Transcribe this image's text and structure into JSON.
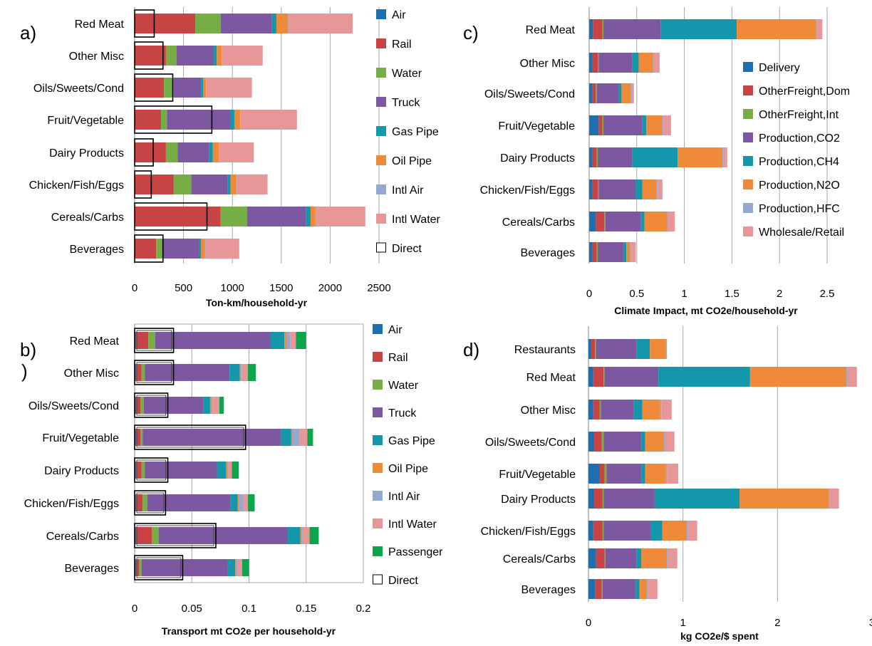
{
  "chart_data": [
    {
      "type": "bar",
      "orientation": "horizontal",
      "stacked": true,
      "panel_label": "a)",
      "xlabel": "Ton-km/household-yr",
      "xlim": [
        0,
        2500
      ],
      "xticks": [
        0,
        500,
        1000,
        1500,
        2000,
        2500
      ],
      "grid": "vertical",
      "legend_position": "right",
      "categories": [
        "Red Meat",
        "Other Misc",
        "Oils/Sweets/Cond",
        "Fruit/Vegetable",
        "Dairy Products",
        "Chicken/Fish/Eggs",
        "Cereals/Carbs",
        "Beverages"
      ],
      "series": [
        {
          "name": "Air",
          "color": "#1f6fae",
          "values": [
            0,
            0,
            0,
            0,
            0,
            0,
            0,
            0
          ]
        },
        {
          "name": "Rail",
          "color": "#c84444",
          "values": [
            620,
            320,
            300,
            270,
            320,
            400,
            880,
            220
          ]
        },
        {
          "name": "Water",
          "color": "#76ad45",
          "values": [
            260,
            110,
            100,
            60,
            120,
            180,
            270,
            60
          ]
        },
        {
          "name": "Truck",
          "color": "#7c58a0",
          "values": [
            520,
            380,
            280,
            650,
            320,
            370,
            600,
            380
          ]
        },
        {
          "name": "Gas Pipe",
          "color": "#1597ab",
          "values": [
            50,
            30,
            20,
            40,
            40,
            30,
            50,
            20
          ]
        },
        {
          "name": "Oil Pipe",
          "color": "#ef8a38",
          "values": [
            120,
            50,
            30,
            60,
            60,
            60,
            50,
            40
          ]
        },
        {
          "name": "Intl Air",
          "color": "#93a9d4",
          "values": [
            5,
            5,
            5,
            5,
            5,
            5,
            5,
            5
          ]
        },
        {
          "name": "Intl Water",
          "color": "#e79797",
          "values": [
            655,
            415,
            465,
            575,
            355,
            315,
            505,
            345
          ]
        }
      ],
      "direct": {
        "name": "Direct",
        "values": [
          200,
          290,
          390,
          790,
          190,
          170,
          740,
          290
        ]
      }
    },
    {
      "type": "bar",
      "orientation": "horizontal",
      "stacked": true,
      "panel_label": "b)\n)",
      "xlabel": "Transport mt CO2e per household-yr",
      "xlim": [
        0,
        0.2
      ],
      "xticks": [
        0,
        0.05,
        0.1,
        0.15,
        0.2
      ],
      "tick_labels": [
        "0",
        "0.05",
        "0.1",
        "0.15",
        "0.2"
      ],
      "grid": "vertical",
      "legend_position": "right",
      "categories": [
        "Red Meat",
        "Other Misc",
        "Oils/Sweets/Cond",
        "Fruit/Vegetable",
        "Dairy Products",
        "Chicken/Fish/Eggs",
        "Cereals/Carbs",
        "Beverages"
      ],
      "series": [
        {
          "name": "Air",
          "color": "#1f6fae",
          "values": [
            0.001,
            0.001,
            0.001,
            0.001,
            0.001,
            0.001,
            0.001,
            0.001
          ]
        },
        {
          "name": "Rail",
          "color": "#c84444",
          "values": [
            0.011,
            0.005,
            0.004,
            0.004,
            0.005,
            0.006,
            0.014,
            0.003
          ]
        },
        {
          "name": "Water",
          "color": "#76ad45",
          "values": [
            0.006,
            0.003,
            0.003,
            0.002,
            0.003,
            0.004,
            0.006,
            0.002
          ]
        },
        {
          "name": "Truck",
          "color": "#7c58a0",
          "values": [
            0.101,
            0.074,
            0.052,
            0.121,
            0.063,
            0.073,
            0.113,
            0.075
          ]
        },
        {
          "name": "Gas Pipe",
          "color": "#1597ab",
          "values": [
            0.012,
            0.009,
            0.006,
            0.009,
            0.008,
            0.006,
            0.011,
            0.007
          ]
        },
        {
          "name": "Oil Pipe",
          "color": "#ef8a38",
          "values": [
            0.002,
            0.001,
            0.001,
            0.001,
            0.001,
            0.001,
            0.001,
            0.001
          ]
        },
        {
          "name": "Intl Air",
          "color": "#93a9d4",
          "values": [
            0.003,
            0.001,
            0.001,
            0.006,
            0.001,
            0.004,
            0.001,
            0.001
          ]
        },
        {
          "name": "Intl Water",
          "color": "#e79797",
          "values": [
            0.005,
            0.005,
            0.006,
            0.007,
            0.003,
            0.004,
            0.006,
            0.004
          ]
        },
        {
          "name": "Passenger",
          "color": "#0fa34b",
          "values": [
            0.009,
            0.007,
            0.004,
            0.005,
            0.006,
            0.006,
            0.008,
            0.006
          ]
        }
      ],
      "direct": {
        "name": "Direct",
        "values": [
          0.034,
          0.034,
          0.029,
          0.097,
          0.029,
          0.027,
          0.071,
          0.042
        ]
      }
    },
    {
      "type": "bar",
      "orientation": "horizontal",
      "stacked": true,
      "panel_label": "c)",
      "xlabel": "Climate Impact, mt CO2e/household-yr",
      "xlim": [
        0,
        2.5
      ],
      "xticks": [
        0,
        0.5,
        1,
        1.5,
        2,
        2.5
      ],
      "tick_labels": [
        "0",
        "0.5",
        "1",
        "1.5",
        "2",
        "2.5"
      ],
      "grid": "vertical",
      "legend_position": "inside-right",
      "categories": [
        "Red Meat",
        "Other Misc",
        "Oils/Sweets/Cond",
        "Fruit/Vegetable",
        "Dairy Products",
        "Chicken/Fish/Eggs",
        "Cereals/Carbs",
        "Beverages"
      ],
      "series": [
        {
          "name": "Delivery",
          "color": "#1f6fae",
          "values": [
            0.04,
            0.03,
            0.03,
            0.1,
            0.03,
            0.03,
            0.07,
            0.03
          ]
        },
        {
          "name": "OtherFreight,Dom",
          "color": "#c84444",
          "values": [
            0.1,
            0.06,
            0.04,
            0.04,
            0.05,
            0.06,
            0.09,
            0.05
          ]
        },
        {
          "name": "OtherFreight,Int",
          "color": "#76ad45",
          "values": [
            0.01,
            0.01,
            0.01,
            0.01,
            0.01,
            0.01,
            0.01,
            0.01
          ]
        },
        {
          "name": "Production,CO2",
          "color": "#7c58a0",
          "values": [
            0.6,
            0.35,
            0.23,
            0.41,
            0.36,
            0.39,
            0.37,
            0.27
          ]
        },
        {
          "name": "Production,CH4",
          "color": "#1597ab",
          "values": [
            0.8,
            0.07,
            0.03,
            0.04,
            0.48,
            0.07,
            0.04,
            0.03
          ]
        },
        {
          "name": "Production,N2O",
          "color": "#ef8a38",
          "values": [
            0.83,
            0.15,
            0.1,
            0.17,
            0.47,
            0.15,
            0.24,
            0.04
          ]
        },
        {
          "name": "Production,HFC",
          "color": "#93a9d4",
          "values": [
            0.01,
            0.01,
            0.01,
            0.01,
            0.01,
            0.01,
            0.01,
            0.01
          ]
        },
        {
          "name": "Wholesale/Retail",
          "color": "#e79797",
          "values": [
            0.06,
            0.06,
            0.02,
            0.08,
            0.04,
            0.05,
            0.07,
            0.05
          ]
        }
      ]
    },
    {
      "type": "bar",
      "orientation": "horizontal",
      "stacked": true,
      "panel_label": "d)",
      "xlabel": "kg CO2e/$ spent",
      "xlim": [
        0,
        3
      ],
      "xticks": [
        0,
        1,
        2,
        3
      ],
      "tick_labels": [
        "0",
        "1",
        "2",
        "3"
      ],
      "grid": "vertical",
      "categories": [
        "Restaurants",
        "Red Meat",
        "Other Misc",
        "Oils/Sweets/Cond",
        "Fruit/Vegetable",
        "Dairy Products",
        "Chicken/Fish/Eggs",
        "Cereals/Carbs",
        "Beverages"
      ],
      "series": [
        {
          "name": "Delivery",
          "color": "#1f6fae",
          "values": [
            0.03,
            0.05,
            0.05,
            0.06,
            0.12,
            0.06,
            0.05,
            0.08,
            0.07
          ]
        },
        {
          "name": "OtherFreight,Dom",
          "color": "#c84444",
          "values": [
            0.04,
            0.11,
            0.07,
            0.08,
            0.05,
            0.09,
            0.1,
            0.09,
            0.07
          ]
        },
        {
          "name": "OtherFreight,Int",
          "color": "#76ad45",
          "values": [
            0.01,
            0.01,
            0.01,
            0.02,
            0.02,
            0.01,
            0.01,
            0.01,
            0.01
          ]
        },
        {
          "name": "Production,CO2",
          "color": "#7c58a0",
          "values": [
            0.43,
            0.57,
            0.35,
            0.4,
            0.37,
            0.54,
            0.5,
            0.33,
            0.35
          ]
        },
        {
          "name": "Production,CH4",
          "color": "#1597ab",
          "values": [
            0.14,
            0.97,
            0.09,
            0.04,
            0.04,
            0.9,
            0.12,
            0.05,
            0.04
          ]
        },
        {
          "name": "Production,N2O",
          "color": "#ef8a38",
          "values": [
            0.17,
            1.02,
            0.19,
            0.2,
            0.22,
            0.94,
            0.26,
            0.27,
            0.08
          ]
        },
        {
          "name": "Production,HFC",
          "color": "#93a9d4",
          "values": [
            0.01,
            0.01,
            0.01,
            0.01,
            0.01,
            0.01,
            0.01,
            0.01,
            0.01
          ]
        },
        {
          "name": "Wholesale/Retail",
          "color": "#e79797",
          "values": [
            0.0,
            0.1,
            0.11,
            0.1,
            0.12,
            0.1,
            0.1,
            0.1,
            0.1
          ]
        }
      ]
    }
  ]
}
